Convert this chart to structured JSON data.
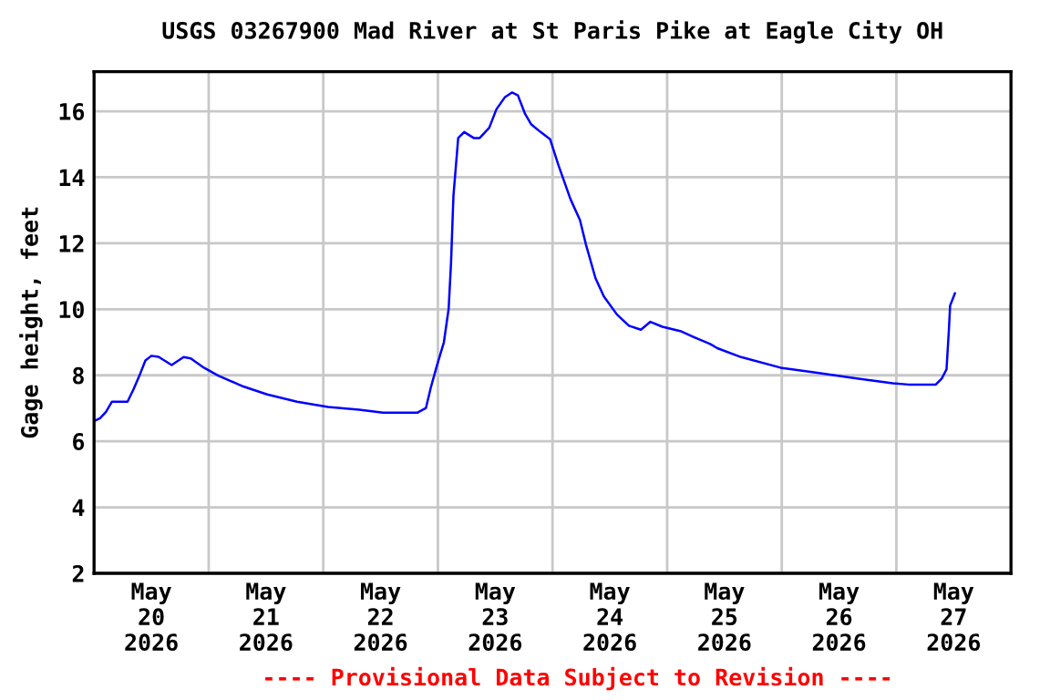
{
  "chart_data": {
    "type": "line",
    "title": "USGS 03267900 Mad River at St Paris Pike at Eagle City OH",
    "ylabel": "Gage height, feet",
    "annotations": [
      "---- Provisional Data Subject to Revision ----"
    ],
    "series": [
      {
        "color": "#0000ff",
        "x": [
          "2026-05-20T00:00",
          "2026-05-20T01:15",
          "2026-05-20T02:30",
          "2026-05-20T03:45",
          "2026-05-20T07:00",
          "2026-05-20T08:15",
          "2026-05-20T09:30",
          "2026-05-20T10:45",
          "2026-05-20T12:00",
          "2026-05-20T13:30",
          "2026-05-20T16:15",
          "2026-05-20T18:45",
          "2026-05-20T20:15",
          "2026-05-20T23:00",
          "2026-05-21T02:00",
          "2026-05-21T07:15",
          "2026-05-21T12:15",
          "2026-05-21T18:30",
          "2026-05-22T01:00",
          "2026-05-22T07:30",
          "2026-05-22T12:30",
          "2026-05-22T19:45",
          "2026-05-22T21:30",
          "2026-05-22T22:30",
          "2026-05-22T23:45",
          "2026-05-23T01:15",
          "2026-05-23T02:15",
          "2026-05-23T02:45",
          "2026-05-23T03:15",
          "2026-05-23T04:15",
          "2026-05-23T05:30",
          "2026-05-23T07:30",
          "2026-05-23T08:45",
          "2026-05-23T10:45",
          "2026-05-23T12:15",
          "2026-05-23T14:00",
          "2026-05-23T15:30",
          "2026-05-23T16:45",
          "2026-05-23T18:15",
          "2026-05-23T19:30",
          "2026-05-23T21:30",
          "2026-05-23T23:30",
          "2026-05-24T01:15",
          "2026-05-24T03:45",
          "2026-05-24T05:45",
          "2026-05-24T07:00",
          "2026-05-24T09:00",
          "2026-05-24T10:45",
          "2026-05-24T13:30",
          "2026-05-24T16:00",
          "2026-05-24T18:30",
          "2026-05-24T20:30",
          "2026-05-24T23:00",
          "2026-05-25T02:45",
          "2026-05-25T06:30",
          "2026-05-25T09:00",
          "2026-05-25T10:30",
          "2026-05-25T15:30",
          "2026-05-25T23:45",
          "2026-05-26T06:45",
          "2026-05-26T15:45",
          "2026-05-26T23:15",
          "2026-05-27T02:30",
          "2026-05-27T08:15",
          "2026-05-27T09:30",
          "2026-05-27T10:30",
          "2026-05-27T11:00",
          "2026-05-27T11:15",
          "2026-05-27T12:15"
        ],
        "values": [
          6.61,
          6.7,
          6.89,
          7.2,
          7.2,
          7.57,
          7.99,
          8.45,
          8.59,
          8.56,
          8.31,
          8.55,
          8.51,
          8.23,
          7.99,
          7.66,
          7.42,
          7.2,
          7.04,
          6.96,
          6.87,
          6.87,
          7.01,
          7.62,
          8.27,
          9.0,
          10.02,
          11.41,
          13.43,
          15.19,
          15.37,
          15.19,
          15.19,
          15.5,
          16.06,
          16.42,
          16.57,
          16.48,
          15.92,
          15.61,
          15.37,
          15.15,
          14.36,
          13.34,
          12.7,
          11.96,
          10.94,
          10.39,
          9.84,
          9.5,
          9.38,
          9.62,
          9.47,
          9.34,
          9.1,
          8.95,
          8.82,
          8.55,
          8.23,
          8.09,
          7.9,
          7.76,
          7.72,
          7.72,
          7.9,
          8.18,
          9.38,
          10.11,
          10.48
        ]
      }
    ],
    "xlim": [
      "2026-05-20T00:00",
      "2026-05-28T00:00"
    ],
    "xticks": [
      {
        "value": "2026-05-20T12:00",
        "label": "May\n20\n2026"
      },
      {
        "value": "2026-05-21T12:00",
        "label": "May\n21\n2026"
      },
      {
        "value": "2026-05-22T12:00",
        "label": "May\n22\n2026"
      },
      {
        "value": "2026-05-23T12:00",
        "label": "May\n23\n2026"
      },
      {
        "value": "2026-05-24T12:00",
        "label": "May\n24\n2026"
      },
      {
        "value": "2026-05-25T12:00",
        "label": "May\n25\n2026"
      },
      {
        "value": "2026-05-26T12:00",
        "label": "May\n26\n2026"
      },
      {
        "value": "2026-05-27T12:00",
        "label": "May\n27\n2026"
      },
      {
        "value": "2026-05-21",
        "label": null
      },
      {
        "value": "2026-05-22",
        "label": null
      },
      {
        "value": "2026-05-23",
        "label": null
      },
      {
        "value": "2026-05-24",
        "label": null
      },
      {
        "value": "2026-05-25",
        "label": null
      },
      {
        "value": "2026-05-26",
        "label": null
      },
      {
        "value": "2026-05-27",
        "label": null
      }
    ],
    "ylim": [
      2,
      17.2
    ],
    "yticks": [
      2,
      4,
      6,
      8,
      10,
      12,
      14,
      16
    ],
    "grid": true
  }
}
